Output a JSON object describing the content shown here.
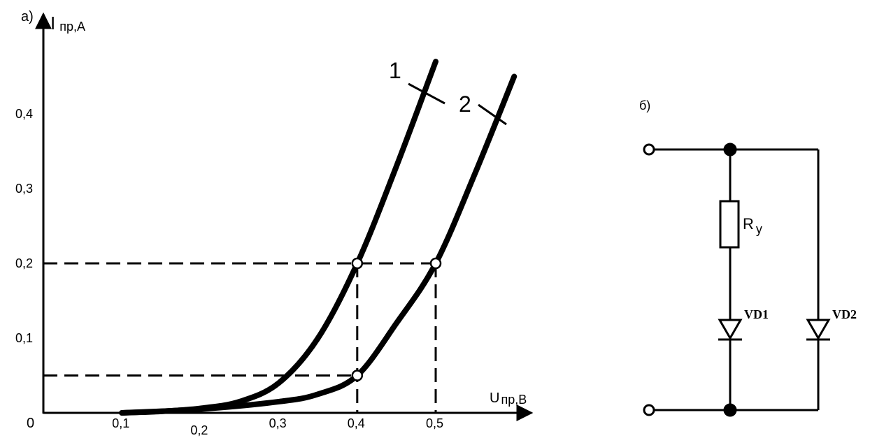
{
  "figure_a": {
    "panel_label": "а)",
    "y_axis_label": "I",
    "y_axis_sub": "пр,А",
    "x_axis_label": "U",
    "x_axis_sub": "пр,В",
    "origin_label": "0"
  },
  "chart_data": {
    "type": "line",
    "x_ticks": [
      {
        "v": 0.1,
        "label": "0,1"
      },
      {
        "v": 0.2,
        "label": "0,2"
      },
      {
        "v": 0.3,
        "label": "0,3"
      },
      {
        "v": 0.4,
        "label": "0,4"
      },
      {
        "v": 0.5,
        "label": "0,5"
      }
    ],
    "y_ticks": [
      {
        "v": 0.1,
        "label": "0,1"
      },
      {
        "v": 0.2,
        "label": "0,2"
      },
      {
        "v": 0.3,
        "label": "0,3"
      },
      {
        "v": 0.4,
        "label": "0,4"
      }
    ],
    "xlim": [
      0,
      0.6
    ],
    "ylim": [
      0,
      0.5
    ],
    "series": [
      {
        "name": "1",
        "points": [
          [
            0.1,
            0.0
          ],
          [
            0.15,
            0.002
          ],
          [
            0.2,
            0.006
          ],
          [
            0.25,
            0.015
          ],
          [
            0.3,
            0.04
          ],
          [
            0.35,
            0.1
          ],
          [
            0.4,
            0.2
          ],
          [
            0.45,
            0.33
          ],
          [
            0.5,
            0.47
          ]
        ]
      },
      {
        "name": "2",
        "points": [
          [
            0.1,
            0.0
          ],
          [
            0.2,
            0.005
          ],
          [
            0.3,
            0.015
          ],
          [
            0.35,
            0.025
          ],
          [
            0.4,
            0.05
          ],
          [
            0.45,
            0.12
          ],
          [
            0.5,
            0.2
          ],
          [
            0.55,
            0.32
          ],
          [
            0.6,
            0.45
          ]
        ]
      }
    ],
    "marked_points": [
      [
        0.4,
        0.2
      ],
      [
        0.5,
        0.2
      ],
      [
        0.4,
        0.05
      ]
    ],
    "dashed_y_levels": [
      0.2,
      0.05
    ],
    "dashed_x_levels": [
      0.4,
      0.5
    ]
  },
  "figure_b": {
    "panel_label": "б)",
    "resistor_label": "R",
    "resistor_sub": "у",
    "diode1_label": "VD1",
    "diode2_label": "VD2"
  }
}
